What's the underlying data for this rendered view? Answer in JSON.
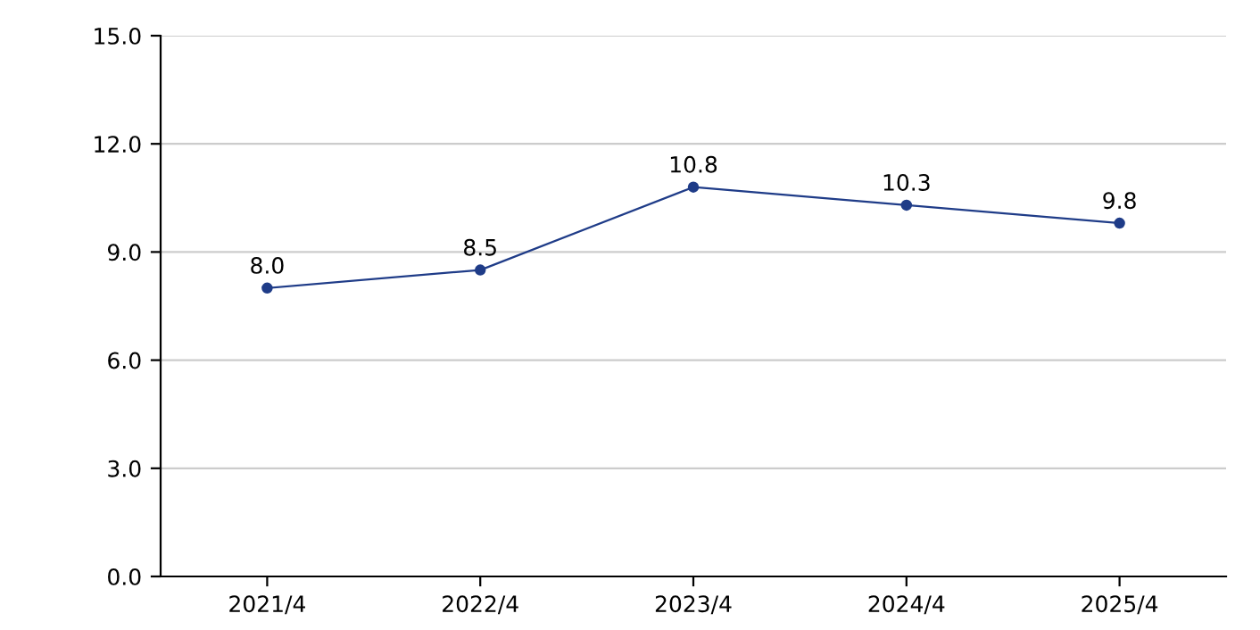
{
  "chart_data": {
    "type": "line",
    "categories": [
      "2021/4",
      "2022/4",
      "2023/4",
      "2024/4",
      "2025/4"
    ],
    "series": [
      {
        "color": "#1f3c88",
        "values": [
          8.0,
          8.5,
          10.8,
          10.3,
          9.8
        ],
        "value_labels": [
          "8.0",
          "8.5",
          "10.8",
          "10.3",
          "9.8"
        ]
      }
    ],
    "ylim": [
      0,
      15
    ],
    "yticks": [
      {
        "value": 0,
        "label": "0.0"
      },
      {
        "value": 3,
        "label": "3.0"
      },
      {
        "value": 6,
        "label": "6.0"
      },
      {
        "value": 9,
        "label": "9.0"
      },
      {
        "value": 12,
        "label": "12.0"
      },
      {
        "value": 15,
        "label": "15.0"
      }
    ],
    "grid": "y",
    "marker": "circle",
    "line_style": "solid",
    "legend": false
  }
}
